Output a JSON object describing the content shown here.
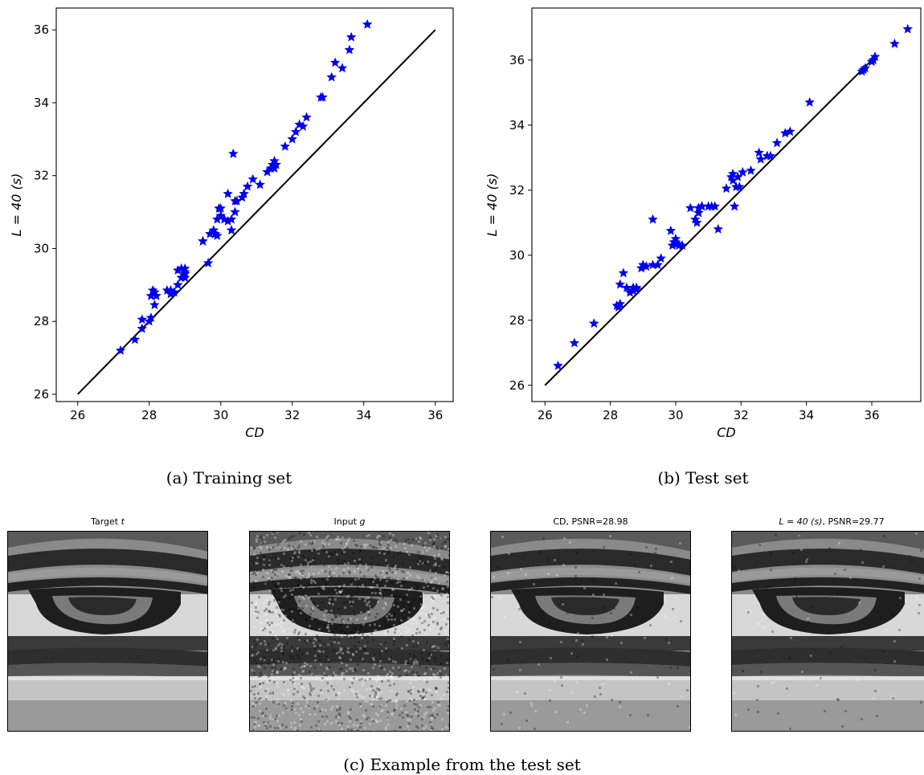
{
  "chart_data": [
    {
      "type": "scatter",
      "xlabel": "CD",
      "ylabel": "L = 40 (s)",
      "xlim": [
        25.4,
        36.5
      ],
      "ylim": [
        25.8,
        36.6
      ],
      "xticks": [
        26,
        28,
        30,
        32,
        34,
        36
      ],
      "yticks": [
        26,
        28,
        30,
        32,
        34,
        36
      ],
      "marker": "star",
      "marker_color": "#0000ee",
      "reference_line": {
        "x": [
          26,
          36
        ],
        "y": [
          26,
          36
        ],
        "color": "#000000"
      },
      "caption": "(a) Training set",
      "x": [
        27.2,
        27.6,
        27.8,
        27.8,
        28.0,
        28.05,
        28.1,
        28.05,
        28.15,
        28.15,
        28.2,
        28.5,
        28.6,
        28.7,
        28.6,
        28.8,
        28.8,
        28.9,
        29.0,
        29.0,
        28.9,
        29.0,
        29.0,
        29.5,
        29.5,
        29.65,
        29.7,
        29.8,
        29.85,
        29.9,
        29.9,
        29.95,
        30.0,
        30.0,
        30.1,
        30.2,
        30.2,
        30.3,
        30.3,
        30.35,
        30.4,
        30.4,
        30.45,
        30.6,
        30.65,
        30.75,
        30.9,
        31.1,
        31.3,
        31.4,
        31.45,
        31.5,
        31.5,
        31.55,
        31.8,
        32.0,
        32.1,
        32.2,
        32.3,
        32.4,
        32.8,
        32.85,
        33.1,
        33.2,
        33.4,
        33.6,
        33.65,
        34.1
      ],
      "y": [
        27.2,
        27.5,
        27.8,
        28.05,
        28.0,
        28.1,
        28.85,
        28.7,
        28.45,
        28.8,
        28.7,
        28.85,
        28.75,
        28.8,
        28.85,
        29.0,
        29.4,
        29.2,
        29.3,
        29.45,
        29.45,
        29.35,
        29.2,
        30.2,
        30.2,
        29.6,
        30.4,
        30.5,
        30.4,
        30.35,
        30.8,
        31.1,
        30.9,
        31.1,
        30.8,
        31.5,
        30.75,
        30.8,
        30.5,
        32.6,
        31.3,
        31.0,
        31.3,
        31.4,
        31.5,
        31.7,
        31.9,
        31.75,
        32.1,
        32.2,
        32.3,
        32.4,
        32.2,
        32.3,
        32.8,
        33.0,
        33.2,
        33.4,
        33.35,
        33.6,
        34.15,
        34.15,
        34.7,
        35.1,
        34.95,
        35.45,
        35.8,
        36.15
      ]
    },
    {
      "type": "scatter",
      "xlabel": "CD",
      "ylabel": "L = 40 (s)",
      "xlim": [
        25.6,
        37.5
      ],
      "ylim": [
        25.5,
        37.6
      ],
      "xticks": [
        26,
        28,
        30,
        32,
        34,
        36
      ],
      "yticks": [
        26,
        28,
        30,
        32,
        34,
        36
      ],
      "marker": "star",
      "marker_color": "#0000ee",
      "reference_line": {
        "x": [
          26,
          36
        ],
        "y": [
          26,
          36
        ],
        "color": "#000000"
      },
      "caption": "(b) Test set",
      "x": [
        26.4,
        26.9,
        27.5,
        28.2,
        28.25,
        28.3,
        28.3,
        28.4,
        28.5,
        28.6,
        28.7,
        28.7,
        28.8,
        28.8,
        28.95,
        29.0,
        29.1,
        29.3,
        29.3,
        29.45,
        29.55,
        29.85,
        29.9,
        29.95,
        30.0,
        30.0,
        30.05,
        30.1,
        30.2,
        30.45,
        30.6,
        30.65,
        30.7,
        30.7,
        30.8,
        30.8,
        31.0,
        31.1,
        31.2,
        31.3,
        31.55,
        31.7,
        31.75,
        31.75,
        31.8,
        31.85,
        31.9,
        31.95,
        32.05,
        32.3,
        32.55,
        32.6,
        32.8,
        32.9,
        33.1,
        33.35,
        33.5,
        34.1,
        35.7,
        35.75,
        35.8,
        36.0,
        36.05,
        36.1,
        36.7,
        37.1
      ],
      "y": [
        26.6,
        27.3,
        27.9,
        28.45,
        28.4,
        28.5,
        29.1,
        29.45,
        29.0,
        28.85,
        28.9,
        29.0,
        28.95,
        29.0,
        29.6,
        29.7,
        29.65,
        29.7,
        31.1,
        29.7,
        29.9,
        30.75,
        30.3,
        30.4,
        30.4,
        30.5,
        30.35,
        30.3,
        30.3,
        31.45,
        31.1,
        31.0,
        31.3,
        31.45,
        31.5,
        31.5,
        31.5,
        31.5,
        31.5,
        30.8,
        32.05,
        32.4,
        32.3,
        32.5,
        31.5,
        32.1,
        32.4,
        32.1,
        32.55,
        32.6,
        33.15,
        32.95,
        33.05,
        33.05,
        33.45,
        33.75,
        33.8,
        34.7,
        35.65,
        35.7,
        35.75,
        35.95,
        36.0,
        36.1,
        36.5,
        36.95
      ]
    }
  ],
  "figure": {
    "caption_c": "(c) Example from the test set",
    "panels": [
      {
        "title_prefix": "Target ",
        "title_var": "t",
        "title_suffix": ""
      },
      {
        "title_prefix": "Input ",
        "title_var": "g",
        "title_suffix": ""
      },
      {
        "title_prefix": "CD, PSNR=28.98",
        "title_var": "",
        "title_suffix": ""
      },
      {
        "title_prefix": "",
        "title_var": "L = 40 (s)",
        "title_suffix": ", PSNR=29.77"
      }
    ]
  }
}
